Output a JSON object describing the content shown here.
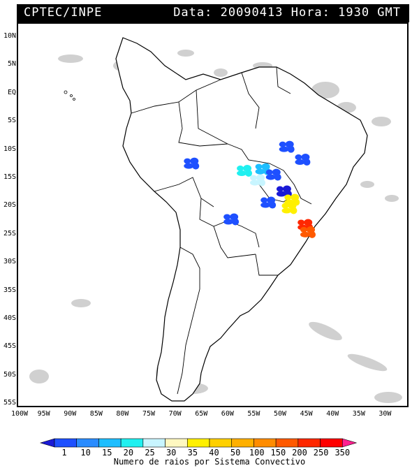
{
  "header": {
    "source": "CPTEC/INPE",
    "datetime": "Data: 20090413 Hora: 1930 GMT"
  },
  "map": {
    "lat_ticks": [
      "10N",
      "5N",
      "EQ",
      "5S",
      "10S",
      "15S",
      "20S",
      "25S",
      "30S",
      "35S",
      "40S",
      "45S",
      "50S",
      "55S"
    ],
    "lon_ticks": [
      "100W",
      "95W",
      "90W",
      "85W",
      "80W",
      "75W",
      "70W",
      "65W",
      "60W",
      "55W",
      "50W",
      "45W",
      "40W",
      "35W",
      "30W"
    ],
    "lat_range": [
      -56,
      12.5
    ],
    "lon_range": [
      -100,
      -26.5
    ],
    "land_fill": "#ffffff",
    "cloud_color": "#c8c8c8"
  },
  "colorbar": {
    "tick_labels": [
      "1",
      "10",
      "15",
      "20",
      "25",
      "30",
      "35",
      "40",
      "50",
      "100",
      "150",
      "200",
      "250",
      "350"
    ],
    "colors": [
      "#1a1ad6",
      "#1e50ff",
      "#2a8cff",
      "#1ebeff",
      "#20f0f0",
      "#c8f5ff",
      "#fff8c0",
      "#fff000",
      "#ffd000",
      "#ffb000",
      "#ff8c00",
      "#ff5a00",
      "#ff2800",
      "#ff0000",
      "#ff2090"
    ],
    "caption": "Numero de raios por Sistema Convectivo"
  },
  "lightning_clusters": [
    {
      "lon": -67.5,
      "lat": -12.5,
      "bin": 1
    },
    {
      "lon": -57.5,
      "lat": -13.8,
      "bin": 4
    },
    {
      "lon": -55.0,
      "lat": -15.5,
      "bin": 5
    },
    {
      "lon": -54.0,
      "lat": -13.5,
      "bin": 3
    },
    {
      "lon": -49.5,
      "lat": -9.5,
      "bin": 1
    },
    {
      "lon": -46.5,
      "lat": -11.8,
      "bin": 1
    },
    {
      "lon": -50.0,
      "lat": -17.5,
      "bin": 0
    },
    {
      "lon": -48.5,
      "lat": -19.0,
      "bin": 7
    },
    {
      "lon": -49.0,
      "lat": -20.5,
      "bin": 7
    },
    {
      "lon": -46.0,
      "lat": -23.5,
      "bin": 12
    },
    {
      "lon": -45.5,
      "lat": -24.8,
      "bin": 11
    },
    {
      "lon": -53.0,
      "lat": -19.5,
      "bin": 1
    },
    {
      "lon": -60.0,
      "lat": -22.5,
      "bin": 1
    },
    {
      "lon": -52.0,
      "lat": -14.5,
      "bin": 1
    }
  ]
}
